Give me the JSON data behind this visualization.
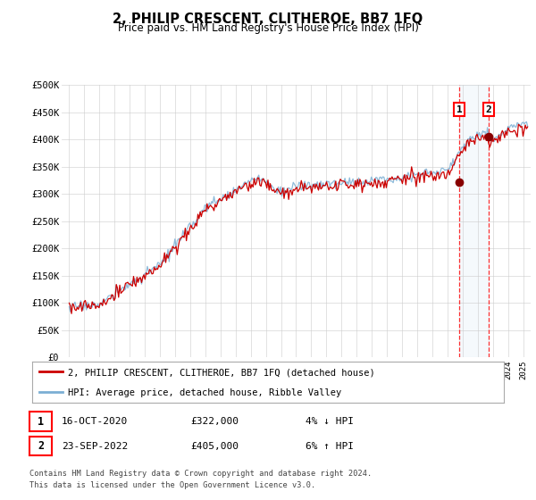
{
  "title": "2, PHILIP CRESCENT, CLITHEROE, BB7 1FQ",
  "subtitle": "Price paid vs. HM Land Registry's House Price Index (HPI)",
  "legend_line1": "2, PHILIP CRESCENT, CLITHEROE, BB7 1FQ (detached house)",
  "legend_line2": "HPI: Average price, detached house, Ribble Valley",
  "footnote1": "Contains HM Land Registry data © Crown copyright and database right 2024.",
  "footnote2": "This data is licensed under the Open Government Licence v3.0.",
  "sale1_label": "1",
  "sale1_date": "16-OCT-2020",
  "sale1_price": "£322,000",
  "sale1_hpi": "4% ↓ HPI",
  "sale2_label": "2",
  "sale2_date": "23-SEP-2022",
  "sale2_price": "£405,000",
  "sale2_hpi": "6% ↑ HPI",
  "sale1_year": 2020.79,
  "sale2_year": 2022.72,
  "sale1_value": 322000,
  "sale2_value": 405000,
  "ylim": [
    0,
    500000
  ],
  "xlim_start": 1994.5,
  "xlim_end": 2025.5,
  "hpi_color": "#7bafd4",
  "price_color": "#cc0000",
  "background_color": "#ffffff",
  "grid_color": "#cccccc",
  "highlight_color": "#ddeeff"
}
